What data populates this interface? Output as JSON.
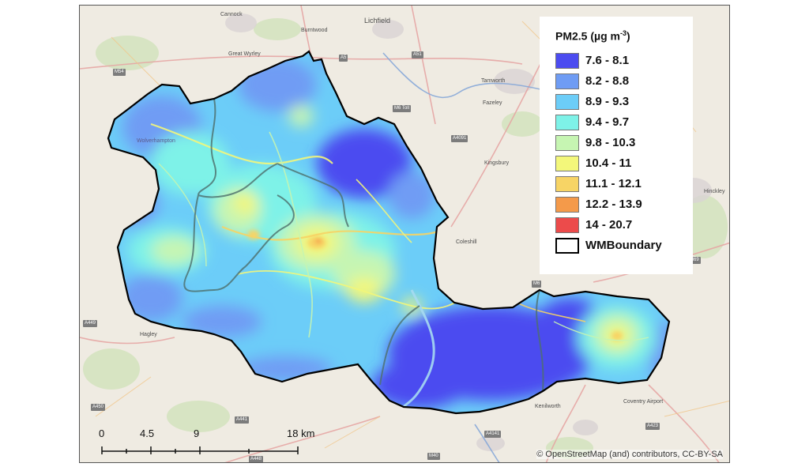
{
  "legend": {
    "title": "PM2.5 (µg m",
    "title_sup": "-3",
    "title_close": ")",
    "items": [
      {
        "label": "7.6 - 8.1",
        "color": "#4c4cf0"
      },
      {
        "label": "8.2 - 8.8",
        "color": "#6f9cf4"
      },
      {
        "label": "8.9 - 9.3",
        "color": "#6ccdf8"
      },
      {
        "label": "9.4 - 9.7",
        "color": "#7ef2e8"
      },
      {
        "label": "9.8 - 10.3",
        "color": "#c6f5b2"
      },
      {
        "label": "10.4 - 11",
        "color": "#f3f77a"
      },
      {
        "label": "11.1 - 12.1",
        "color": "#f7d465"
      },
      {
        "label": "12.2 - 13.9",
        "color": "#f49a4a"
      },
      {
        "label": "14 - 20.7",
        "color": "#ec4b4b"
      }
    ],
    "boundary_label": "WMBoundary"
  },
  "scalebar": {
    "ticks": [
      "0",
      "4.5",
      "9",
      "18 km"
    ]
  },
  "attribution": "© OpenStreetMap (and) contributors, CC-BY-SA",
  "places": [
    "Cannock",
    "Burntwood",
    "Lichfield",
    "Great Wyrley",
    "Tamworth",
    "Fazeley",
    "Kingsbury",
    "Wolverhampton",
    "Coleshill",
    "Hagley",
    "Kenilworth",
    "Coventry Airport",
    "Hinckley"
  ],
  "roads": [
    "A5",
    "A51",
    "M54",
    "M6 Toll",
    "A4091",
    "A449",
    "A450",
    "A441",
    "M40",
    "A448",
    "A423",
    "M69",
    "A4141",
    "M6"
  ]
}
